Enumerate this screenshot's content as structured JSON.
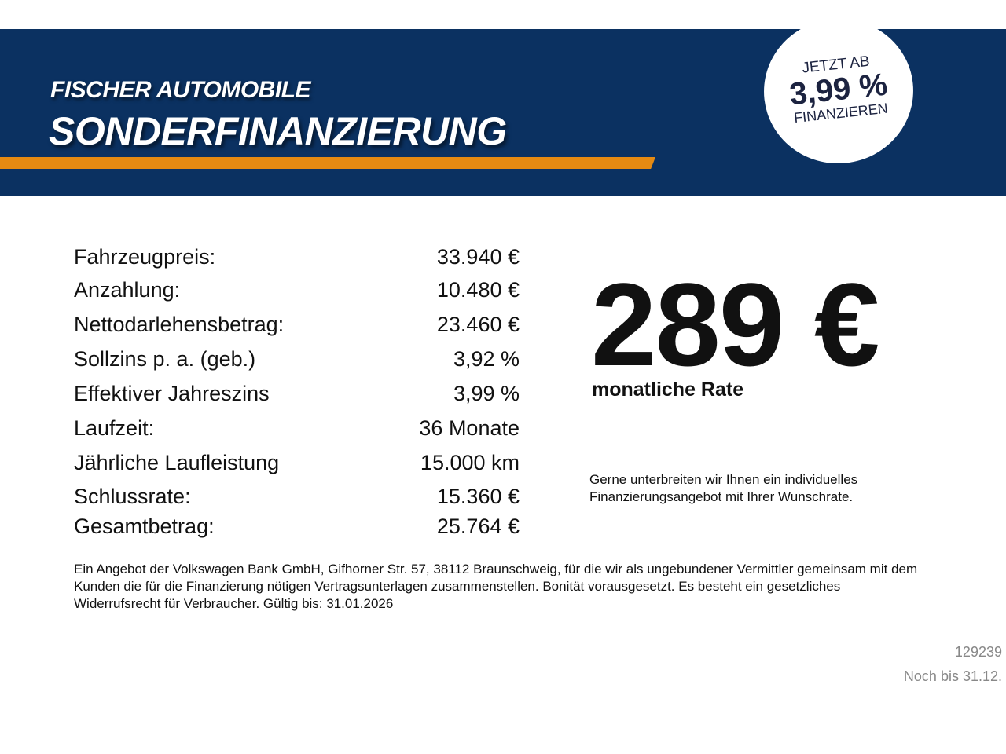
{
  "header": {
    "brand": "FISCHER AUTOMOBILE",
    "title": "SONDERFINANZIERUNG",
    "badge": {
      "line1": "JETZT AB",
      "rate": "3,99 %",
      "line3": "FINANZIEREN"
    },
    "colors": {
      "navy": "#0b3161",
      "accent": "#e58a12"
    }
  },
  "details": [
    {
      "label": "Fahrzeugpreis:",
      "value": "33.940 €"
    },
    {
      "label": "Anzahlung:",
      "value": "10.480 €"
    },
    {
      "label": "Nettodarlehensbetrag:",
      "value": "23.460 €"
    },
    {
      "label": "Sollzins p. a. (geb.)",
      "value": "3,92 %"
    },
    {
      "label": "Effektiver Jahreszins",
      "value": "3,99 %"
    },
    {
      "label": "Laufzeit:",
      "value": "36 Monate"
    },
    {
      "label": "Jährliche Laufleistung",
      "value": "15.000 km"
    },
    {
      "label": "Schlussrate:",
      "value": "15.360 €"
    },
    {
      "label": "Gesamtbetrag:",
      "value": "25.764 €"
    }
  ],
  "rate": {
    "amount": "289 €",
    "label": "monatliche Rate"
  },
  "note": "Gerne unterbreiten wir Ihnen ein individuelles Finanzierungsangebot mit Ihrer Wunschrate.",
  "legal": "Ein Angebot der Volkswagen Bank GmbH, Gifhorner Str. 57, 38112 Braunschweig, für die wir als ungebundener Vermittler gemeinsam mit dem Kunden die für die Finanzierung nötigen Vertragsunterlagen zusammenstellen. Bonität vorausgesetzt. Es besteht ein gesetzliches Widerrufsrecht für Verbraucher. Gültig bis: 31.01.2026",
  "footer": {
    "id": "129239",
    "validity": "Noch bis 31.12."
  }
}
